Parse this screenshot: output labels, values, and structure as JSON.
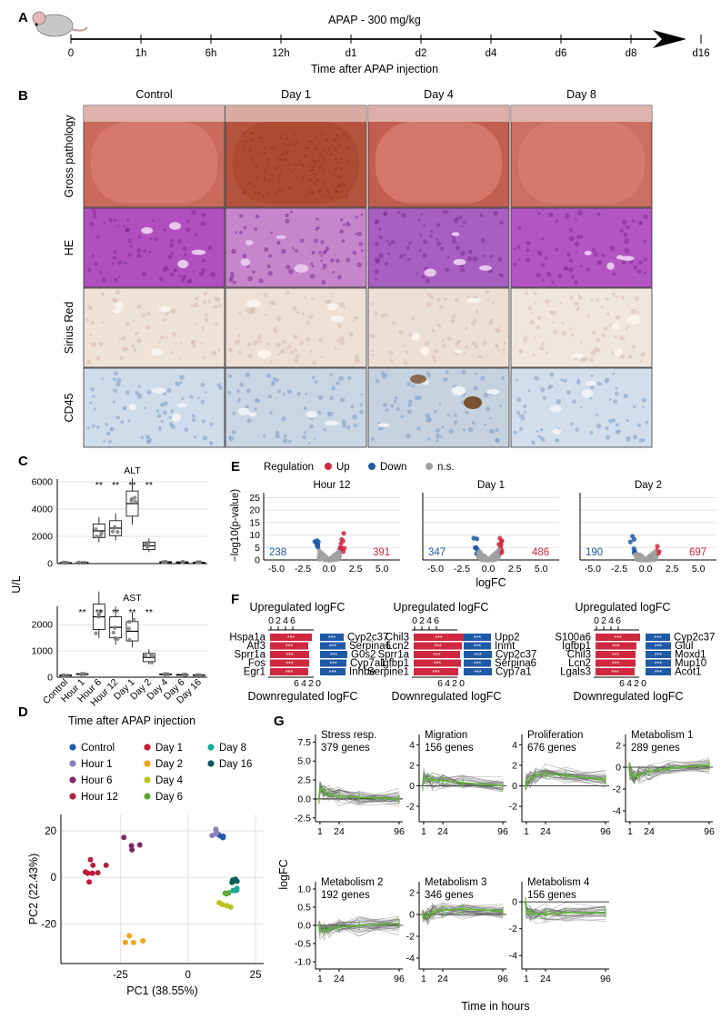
{
  "panel_labels": [
    "A",
    "B",
    "C",
    "D",
    "E",
    "F",
    "G"
  ],
  "panelA": {
    "title": "APAP - 300 mg/kg",
    "ticks": [
      "0",
      "1h",
      "6h",
      "12h",
      "d1",
      "d2",
      "d4",
      "d6",
      "d8",
      "d16"
    ],
    "xlabel": "Time after APAP injection",
    "icon": "mouse-icon"
  },
  "panelB": {
    "columns": [
      "Control",
      "Day 1",
      "Day 4",
      "Day 8"
    ],
    "rows": [
      "Gross pathology",
      "HE",
      "Sirius Red",
      "CD45"
    ],
    "tile_colors": {
      "Gross pathology": [
        "#c96a5c",
        "#b5543e",
        "#c15e4f",
        "#cc6e62"
      ],
      "HE": [
        "#b24fc0",
        "#c786cc",
        "#a85fc1",
        "#b455c4"
      ],
      "Sirius Red": [
        "#efe3d8",
        "#eee0d4",
        "#eedfd5",
        "#f1e6de"
      ],
      "CD45": [
        "#cfdcea",
        "#c9d6e4",
        "#c6d2df",
        "#d2deeb"
      ]
    }
  },
  "panelC": {
    "ylabel": "U/L",
    "xlabel": "Time after APAP injection",
    "categories": [
      "Control",
      "Hour 1",
      "Hour 6",
      "Hour 12",
      "Day 1",
      "Day 2",
      "Day 4",
      "Day 6",
      "Day 16"
    ],
    "alt": {
      "title": "ALT",
      "ylim": [
        0,
        6200
      ],
      "yticks": [
        "0",
        "2000",
        "4000",
        "6000"
      ],
      "sig": [
        "",
        "",
        "**",
        "**",
        "**",
        "**",
        "",
        "",
        ""
      ],
      "medians": [
        60,
        70,
        2400,
        2600,
        4400,
        1300,
        120,
        110,
        90
      ]
    },
    "ast": {
      "title": "AST",
      "ylim": [
        0,
        2700
      ],
      "yticks": [
        "0",
        "1000",
        "2000"
      ],
      "sig": [
        "",
        "**",
        "**",
        "**",
        "**",
        "**",
        "",
        "",
        ""
      ],
      "medians": [
        70,
        120,
        2300,
        1900,
        1750,
        750,
        110,
        90,
        80
      ]
    }
  },
  "panelD": {
    "xlabel": "PC1 (38.55%)",
    "ylabel": "PC2 (22.43%)",
    "xticks": [
      "-25",
      "0",
      "25"
    ],
    "yticks": [
      "20",
      "0",
      "-20"
    ],
    "legend": [
      {
        "name": "Control",
        "color": "#1f5aa6"
      },
      {
        "name": "Hour 1",
        "color": "#8c7fbf"
      },
      {
        "name": "Hour 6",
        "color": "#7a2a6a"
      },
      {
        "name": "Hour 12",
        "color": "#b0233f"
      },
      {
        "name": "Day 1",
        "color": "#c8163a"
      },
      {
        "name": "Day 2",
        "color": "#f2a31c"
      },
      {
        "name": "Day 4",
        "color": "#b7c41e"
      },
      {
        "name": "Day 6",
        "color": "#5aa83a"
      },
      {
        "name": "Day 8",
        "color": "#1aa898"
      },
      {
        "name": "Day 16",
        "color": "#0b5a5a"
      }
    ]
  },
  "panelE": {
    "legend_title": "Regulation",
    "legend": [
      {
        "name": "Up",
        "color": "#d0293f"
      },
      {
        "name": "Down",
        "color": "#1f5aa6"
      },
      {
        "name": "n.s.",
        "color": "#a0a0a0"
      }
    ],
    "ylabel": "−log10(p-value)",
    "xlabel": "logFC",
    "yticks": [
      "0",
      "5",
      "10",
      "15",
      "20",
      "25"
    ],
    "plots": [
      {
        "title": "Hour 12",
        "down": "238",
        "up": "391",
        "xticks": [
          "-5.0",
          "-2.5",
          "0.0",
          "2.5",
          "5.0"
        ]
      },
      {
        "title": "Day 1",
        "down": "347",
        "up": "486",
        "xticks": [
          "-5.0",
          "-2.5",
          "0.0",
          "2.5",
          "5.0"
        ]
      },
      {
        "title": "Day 2",
        "down": "190",
        "up": "697",
        "xticks": [
          "-5.0",
          "-2.5",
          "0.0",
          "2.5",
          "5.0"
        ]
      }
    ]
  },
  "panelF": {
    "top_label": "Upregulated logFC",
    "bottom_label": "Downregulated logFC",
    "sig": "***",
    "groups": [
      {
        "up_ticks": [
          "0",
          "2",
          "4",
          "6"
        ],
        "down_ticks": [
          "6",
          "4",
          "2",
          "0"
        ],
        "up_genes": [
          "Hspa1a",
          "Atf3",
          "Sprr1a",
          "Fos",
          "Egr1"
        ],
        "down_genes": [
          "Cyp2c37",
          "Serpina6",
          "G0s2",
          "Cyp7a1",
          "Inhbe"
        ]
      },
      {
        "up_ticks": [
          "0",
          "2",
          "4",
          "6"
        ],
        "down_ticks": [
          "6",
          "4",
          "2",
          "0"
        ],
        "up_genes": [
          "Chil3",
          "Lcn2",
          "Sprr1a",
          "Igfbp1",
          "Serpine1"
        ],
        "down_genes": [
          "Upp2",
          "Inmt",
          "Cyp2c37",
          "Serpina6",
          "Cyp7a1"
        ]
      },
      {
        "up_ticks": [
          "0",
          "2",
          "4",
          "6"
        ],
        "down_ticks": [
          "6",
          "4",
          "2",
          "0"
        ],
        "up_genes": [
          "S100a6",
          "Igfbp1",
          "Chil3",
          "Lcn2",
          "Lgals3"
        ],
        "down_genes": [
          "Cyp2c37",
          "Glul",
          "Moxd1",
          "Mup10",
          "Acot1"
        ]
      }
    ]
  },
  "panelG": {
    "ylabel": "logFC",
    "xlabel": "Time in hours",
    "xticks": [
      "1",
      "24",
      "96"
    ],
    "plots": [
      {
        "title": "Stress resp.",
        "genes": "379 genes",
        "yticks": [
          "7.5",
          "5.0",
          "2.5",
          "0.0",
          "-2.5"
        ]
      },
      {
        "title": "Migration",
        "genes": "156 genes",
        "yticks": [
          "4",
          "2",
          "0",
          "-2"
        ]
      },
      {
        "title": "Proliferation",
        "genes": "676 genes",
        "yticks": [
          "4",
          "2",
          "0",
          "-2"
        ]
      },
      {
        "title": "Metabolism 1",
        "genes": "289 genes",
        "yticks": [
          "2",
          "0",
          "-2",
          "-4"
        ]
      },
      {
        "title": "Metabolism 2",
        "genes": "192 genes",
        "yticks": [
          "1.0",
          "0.5",
          "0.0",
          "-0.5",
          "-1.0"
        ]
      },
      {
        "title": "Metabolism 3",
        "genes": "346 genes",
        "yticks": [
          "2",
          "0",
          "-2",
          "-4"
        ]
      },
      {
        "title": "Metabolism 4",
        "genes": "156 genes",
        "yticks": [
          "0",
          "-2",
          "-4"
        ]
      }
    ]
  }
}
